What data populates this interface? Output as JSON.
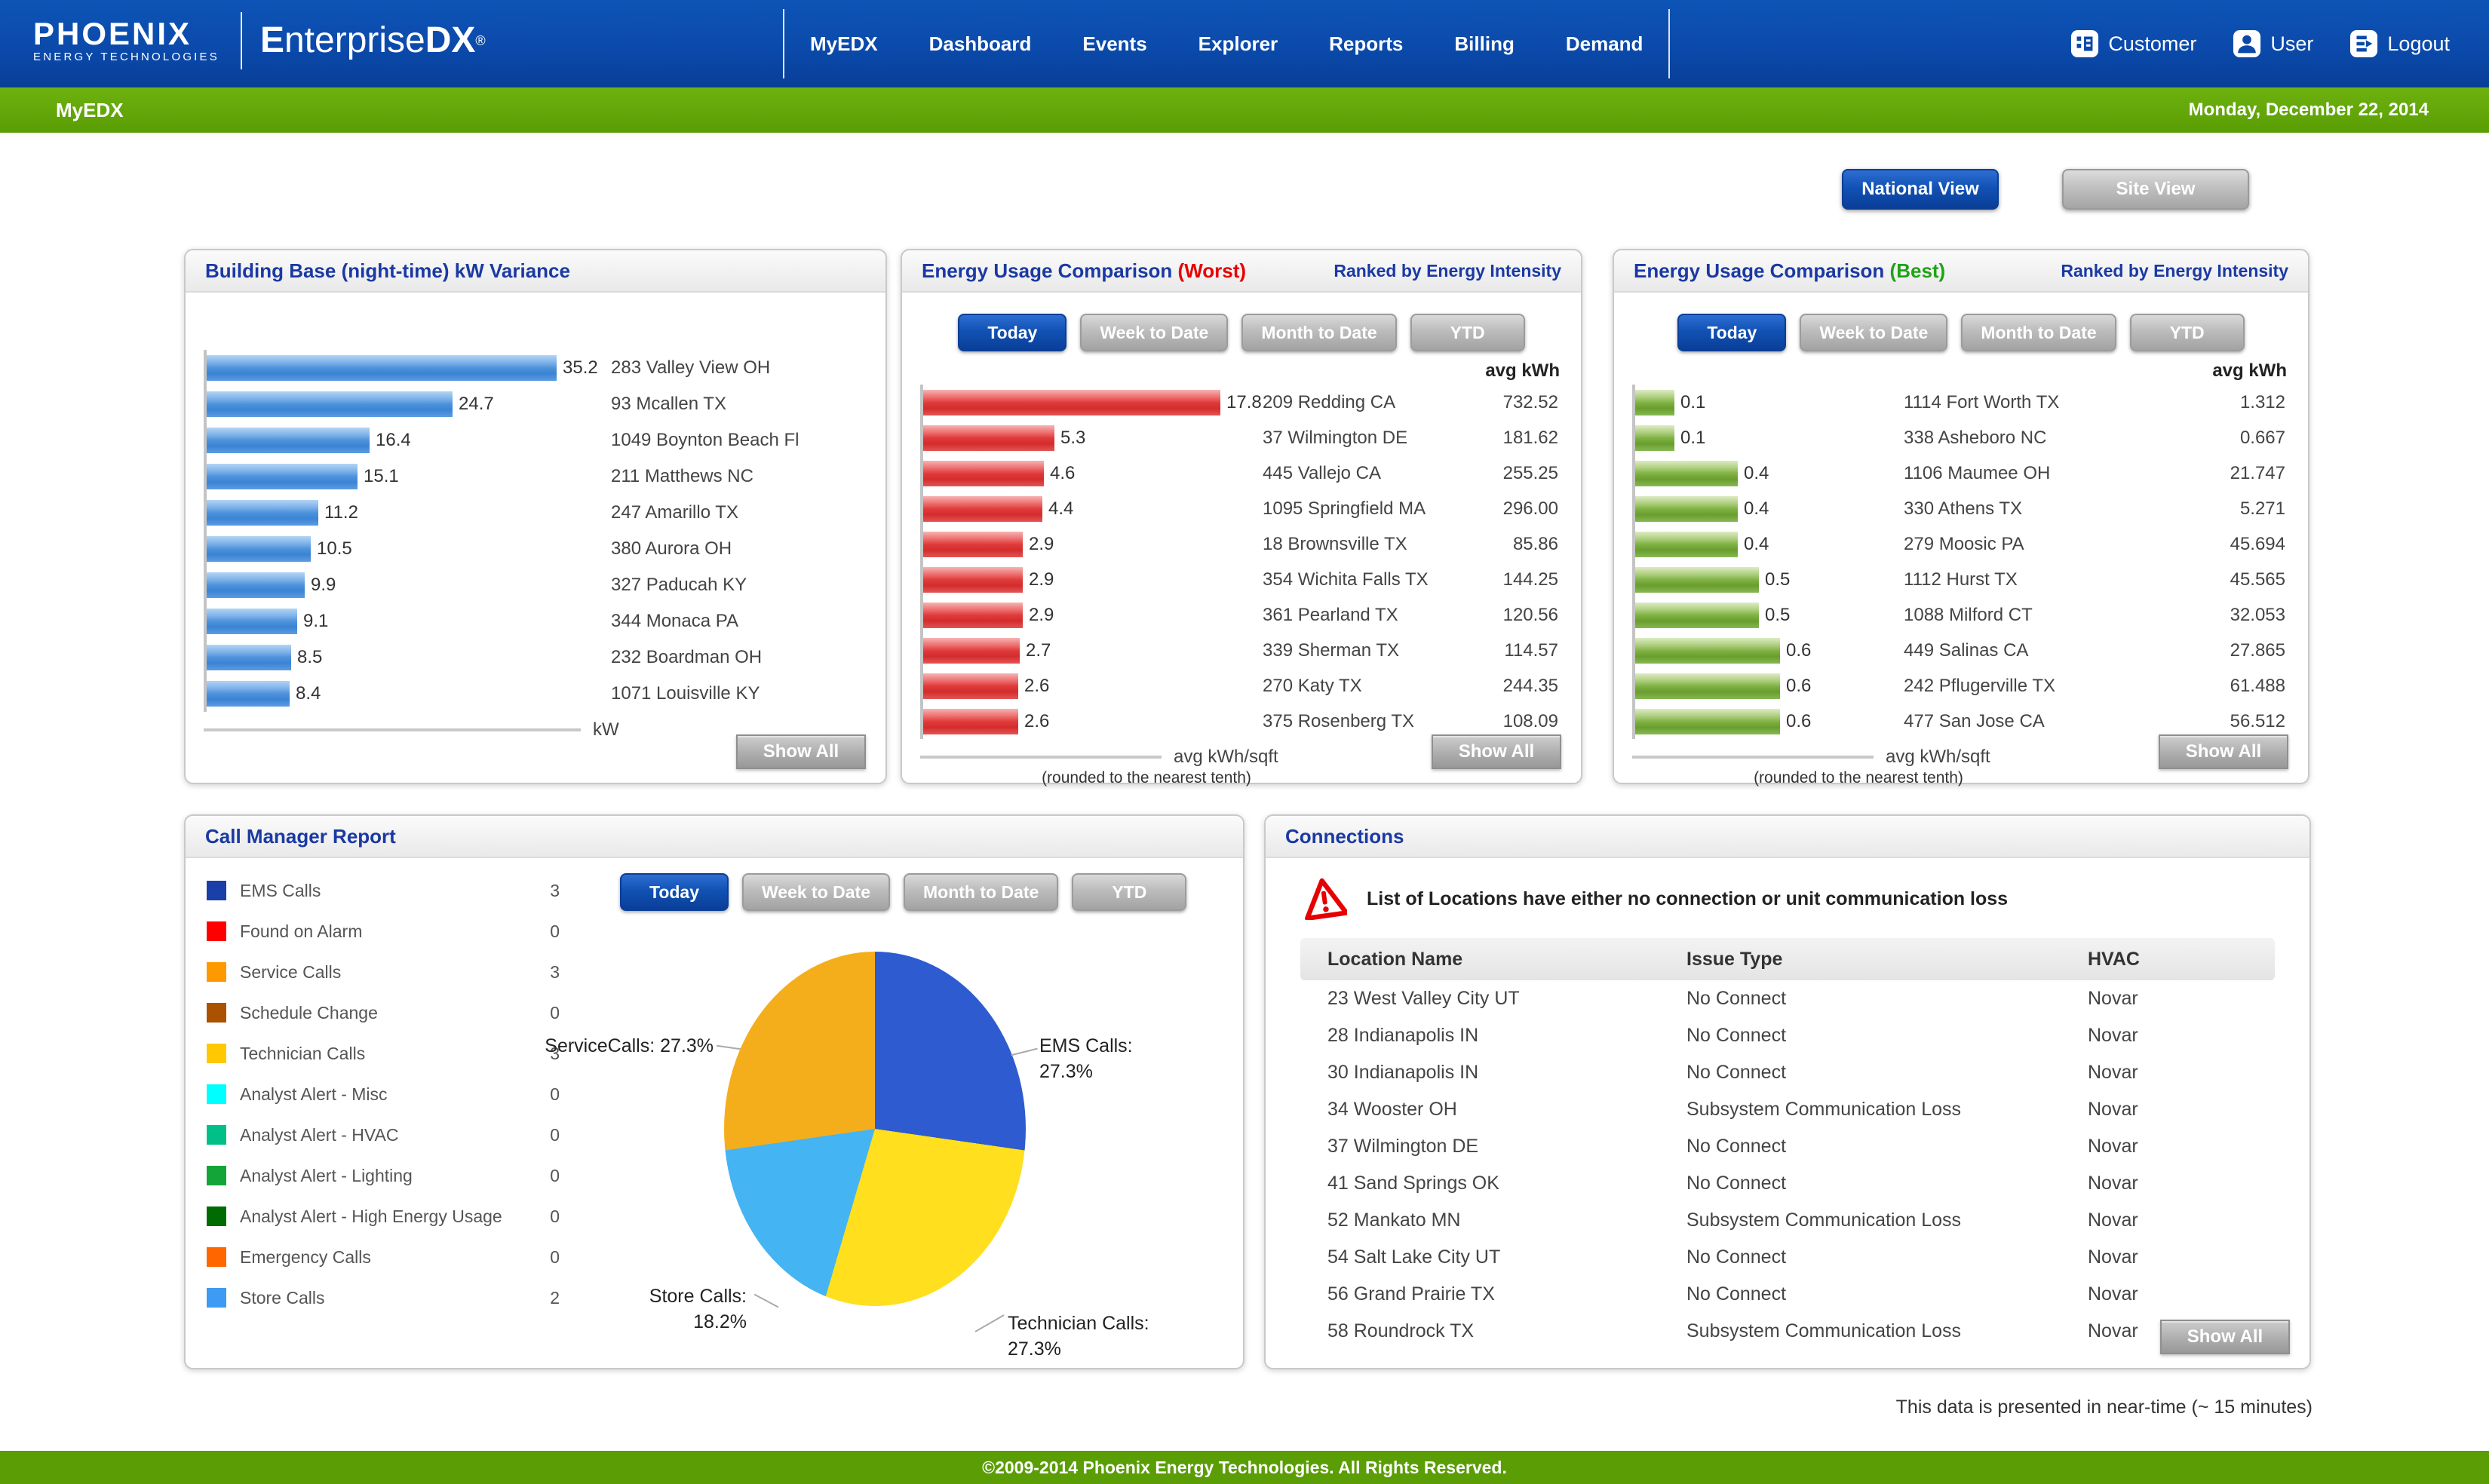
{
  "header": {
    "logo": {
      "brand": "PHOENIX",
      "sub": "ENERGY TECHNOLOGIES",
      "product_e": "E",
      "product_mid": "nterprise",
      "product_dx": "DX",
      "reg": "®"
    },
    "nav": [
      "MyEDX",
      "Dashboard",
      "Events",
      "Explorer",
      "Reports",
      "Billing",
      "Demand"
    ],
    "user_menu": [
      {
        "label": "Customer",
        "icon": "customer-building-icon"
      },
      {
        "label": "User",
        "icon": "user-person-icon"
      },
      {
        "label": "Logout",
        "icon": "logout-exit-icon"
      }
    ]
  },
  "subheader": {
    "title": "MyEDX",
    "date": "Monday, December 22, 2014"
  },
  "view_toggle": {
    "national": "National View",
    "site": "Site View"
  },
  "tabs": [
    "Today",
    "Week to Date",
    "Month to Date",
    "YTD"
  ],
  "panels": {
    "building": {
      "title": "Building Base (night-time) kW Variance",
      "axis_label": "kW",
      "show_all": "Show All",
      "rows": [
        {
          "value": "35.2",
          "location": "283 Valley View OH"
        },
        {
          "value": "24.7",
          "location": "93 Mcallen TX"
        },
        {
          "value": "16.4",
          "location": "1049 Boynton Beach Fl"
        },
        {
          "value": "15.1",
          "location": "211 Matthews NC"
        },
        {
          "value": "11.2",
          "location": "247 Amarillo TX"
        },
        {
          "value": "10.5",
          "location": "380 Aurora OH"
        },
        {
          "value": "9.9",
          "location": "327 Paducah KY"
        },
        {
          "value": "9.1",
          "location": "344 Monaca PA"
        },
        {
          "value": "8.5",
          "location": "232 Boardman OH"
        },
        {
          "value": "8.4",
          "location": "1071 Louisville KY"
        }
      ]
    },
    "worst": {
      "title": "Energy Usage Comparison",
      "tag": "(Worst)",
      "ranked": "Ranked by Energy Intensity",
      "col_header": "avg kWh",
      "axis_label": "avg kWh/sqft",
      "axis_note": "(rounded to the nearest tenth)",
      "show_all": "Show All",
      "rows": [
        {
          "value": "17.8",
          "location": "209 Redding CA",
          "avg": "732.52"
        },
        {
          "value": "5.3",
          "location": "37 Wilmington DE",
          "avg": "181.62"
        },
        {
          "value": "4.6",
          "location": "445 Vallejo CA",
          "avg": "255.25"
        },
        {
          "value": "4.4",
          "location": "1095 Springfield MA",
          "avg": "296.00"
        },
        {
          "value": "2.9",
          "location": "18 Brownsville TX",
          "avg": "85.86"
        },
        {
          "value": "2.9",
          "location": "354 Wichita Falls TX",
          "avg": "144.25"
        },
        {
          "value": "2.9",
          "location": "361 Pearland TX",
          "avg": "120.56"
        },
        {
          "value": "2.7",
          "location": "339 Sherman TX",
          "avg": "114.57"
        },
        {
          "value": "2.6",
          "location": "270 Katy TX",
          "avg": "244.35"
        },
        {
          "value": "2.6",
          "location": "375 Rosenberg TX",
          "avg": "108.09"
        }
      ]
    },
    "best": {
      "title": "Energy Usage Comparison",
      "tag": "(Best)",
      "ranked": "Ranked by Energy Intensity",
      "col_header": "avg kWh",
      "axis_label": "avg kWh/sqft",
      "axis_note": "(rounded to the nearest tenth)",
      "show_all": "Show All",
      "rows": [
        {
          "value": "0.1",
          "location": "1114 Fort Worth TX",
          "avg": "1.312"
        },
        {
          "value": "0.1",
          "location": "338 Asheboro NC",
          "avg": "0.667"
        },
        {
          "value": "0.4",
          "location": "1106 Maumee OH",
          "avg": "21.747"
        },
        {
          "value": "0.4",
          "location": "330 Athens TX",
          "avg": "5.271"
        },
        {
          "value": "0.4",
          "location": "279 Moosic PA",
          "avg": "45.694"
        },
        {
          "value": "0.5",
          "location": "1112 Hurst TX",
          "avg": "45.565"
        },
        {
          "value": "0.5",
          "location": "1088 Milford CT",
          "avg": "32.053"
        },
        {
          "value": "0.6",
          "location": "449 Salinas CA",
          "avg": "27.865"
        },
        {
          "value": "0.6",
          "location": "242 Pflugerville TX",
          "avg": "61.488"
        },
        {
          "value": "0.6",
          "location": "477 San Jose CA",
          "avg": "56.512"
        }
      ]
    },
    "call_manager": {
      "title": "Call Manager Report",
      "legend": [
        {
          "label": "EMS Calls",
          "count": 3,
          "color": "#1B3FA8"
        },
        {
          "label": "Found on Alarm",
          "count": 0,
          "color": "#FF0000"
        },
        {
          "label": "Service Calls",
          "count": 3,
          "color": "#FF9900"
        },
        {
          "label": "Schedule Change",
          "count": 0,
          "color": "#AA5200"
        },
        {
          "label": "Technician Calls",
          "count": 3,
          "color": "#FFC800"
        },
        {
          "label": "Analyst Alert - Misc",
          "count": 0,
          "color": "#00FFFF"
        },
        {
          "label": "Analyst Alert - HVAC",
          "count": 0,
          "color": "#00C088"
        },
        {
          "label": "Analyst Alert - Lighting",
          "count": 0,
          "color": "#13A538"
        },
        {
          "label": "Analyst Alert - High Energy Usage",
          "count": 0,
          "color": "#006B00"
        },
        {
          "label": "Emergency Calls",
          "count": 0,
          "color": "#FF6600"
        },
        {
          "label": "Store Calls",
          "count": 2,
          "color": "#3E9BF4"
        }
      ],
      "pie": {
        "slices": [
          {
            "label": "EMS Calls",
            "pct": 27.3,
            "color": "#2E5BD0"
          },
          {
            "label": "Technician Calls",
            "pct": 27.3,
            "color": "#FFDF1E"
          },
          {
            "label": "Store Calls",
            "pct": 18.2,
            "color": "#45B4F2"
          },
          {
            "label": "ServiceCalls",
            "pct": 27.3,
            "color": "#F5AE1B"
          }
        ],
        "labels": {
          "service": "ServiceCalls: 27.3%",
          "ems_name": "EMS Calls:",
          "ems_pct": "27.3%",
          "store_name": "Store Calls:",
          "store_pct": "18.2%",
          "tech_name": "Technician Calls:",
          "tech_pct": "27.3%"
        }
      }
    },
    "connections": {
      "title": "Connections",
      "warning": "List of Locations have either no connection or unit communication loss",
      "columns": [
        "Location Name",
        "Issue Type",
        "HVAC"
      ],
      "show_all": "Show All",
      "rows": [
        [
          "23 West Valley City UT",
          "No Connect",
          "Novar"
        ],
        [
          "28 Indianapolis IN",
          "No Connect",
          "Novar"
        ],
        [
          "30 Indianapolis IN",
          "No Connect",
          "Novar"
        ],
        [
          "34 Wooster OH",
          "Subsystem Communication Loss",
          "Novar"
        ],
        [
          "37 Wilmington DE",
          "No Connect",
          "Novar"
        ],
        [
          "41 Sand Springs OK",
          "No Connect",
          "Novar"
        ],
        [
          "52 Mankato MN",
          "Subsystem Communication Loss",
          "Novar"
        ],
        [
          "54 Salt Lake City UT",
          "No Connect",
          "Novar"
        ],
        [
          "56 Grand Prairie TX",
          "No Connect",
          "Novar"
        ],
        [
          "58 Roundrock TX",
          "Subsystem Communication Loss",
          "Novar"
        ]
      ]
    }
  },
  "footnote": "This data is presented in near-time (~ 15 minutes)",
  "footer": "©2009-2014 Phoenix Energy Technologies. All Rights Reserved.",
  "chart_data": [
    {
      "type": "bar",
      "title": "Building Base (night-time) kW Variance",
      "orientation": "horizontal",
      "xlabel": "kW",
      "categories": [
        "283 Valley View OH",
        "93 Mcallen TX",
        "1049 Boynton Beach Fl",
        "211 Matthews NC",
        "247 Amarillo TX",
        "380 Aurora OH",
        "327 Paducah KY",
        "344 Monaca PA",
        "232 Boardman OH",
        "1071 Louisville KY"
      ],
      "values": [
        35.2,
        24.7,
        16.4,
        15.1,
        11.2,
        10.5,
        9.9,
        9.1,
        8.5,
        8.4
      ]
    },
    {
      "type": "bar",
      "title": "Energy Usage Comparison (Worst) - Today",
      "orientation": "horizontal",
      "xlabel": "avg kWh/sqft (rounded to the nearest tenth)",
      "categories": [
        "209 Redding CA",
        "37 Wilmington DE",
        "445 Vallejo CA",
        "1095 Springfield MA",
        "18 Brownsville TX",
        "354 Wichita Falls TX",
        "361 Pearland TX",
        "339 Sherman TX",
        "270 Katy TX",
        "375 Rosenberg TX"
      ],
      "values": [
        17.8,
        5.3,
        4.6,
        4.4,
        2.9,
        2.9,
        2.9,
        2.7,
        2.6,
        2.6
      ],
      "avg_kwh": [
        732.52,
        181.62,
        255.25,
        296.0,
        85.86,
        144.25,
        120.56,
        114.57,
        244.35,
        108.09
      ]
    },
    {
      "type": "bar",
      "title": "Energy Usage Comparison (Best) - Today",
      "orientation": "horizontal",
      "xlabel": "avg kWh/sqft (rounded to the nearest tenth)",
      "categories": [
        "1114 Fort Worth TX",
        "338 Asheboro NC",
        "1106 Maumee OH",
        "330 Athens TX",
        "279 Moosic PA",
        "1112 Hurst TX",
        "1088 Milford CT",
        "449 Salinas CA",
        "242 Pflugerville TX",
        "477 San Jose CA"
      ],
      "values": [
        0.1,
        0.1,
        0.4,
        0.4,
        0.4,
        0.5,
        0.5,
        0.6,
        0.6,
        0.6
      ],
      "avg_kwh": [
        1.312,
        0.667,
        21.747,
        5.271,
        45.694,
        45.565,
        32.053,
        27.865,
        61.488,
        56.512
      ]
    },
    {
      "type": "pie",
      "title": "Call Manager Report - Today",
      "labels": [
        "EMS Calls",
        "Technician Calls",
        "Store Calls",
        "ServiceCalls"
      ],
      "values": [
        27.3,
        27.3,
        18.2,
        27.3
      ],
      "unit": "%"
    }
  ]
}
